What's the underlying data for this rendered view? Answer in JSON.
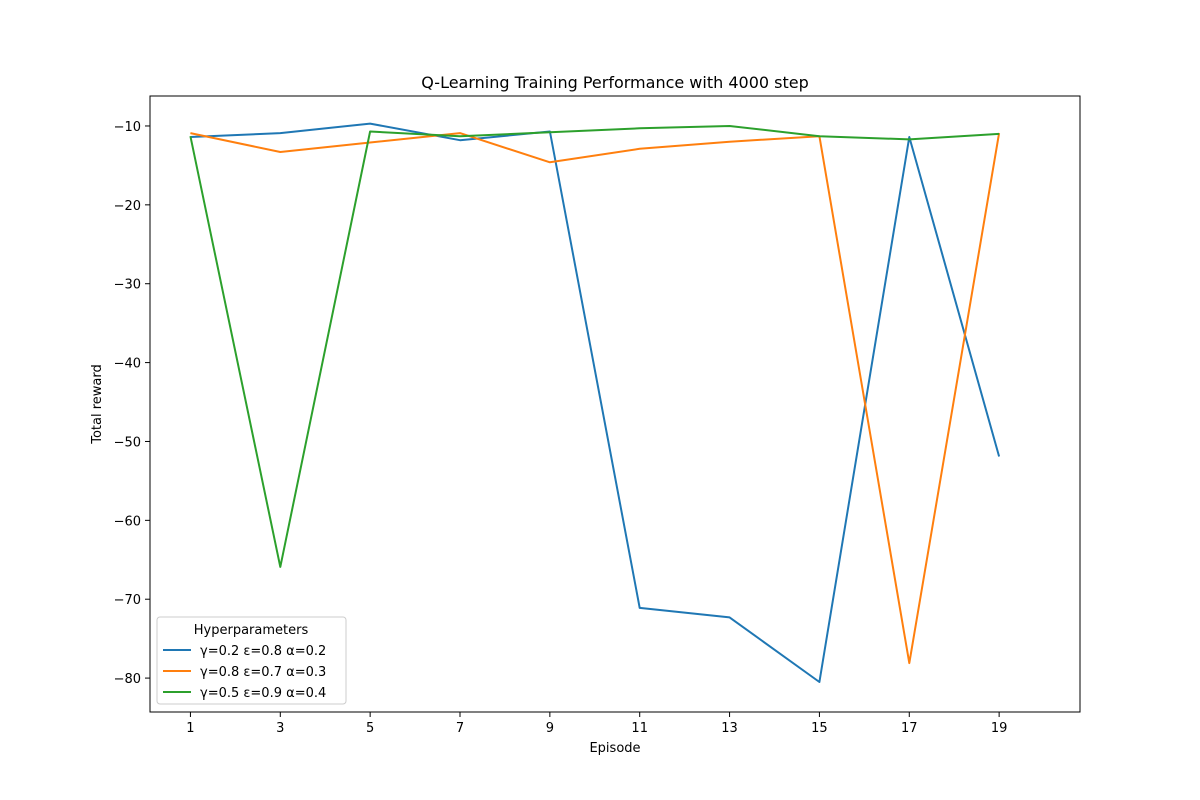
{
  "chart_data": {
    "type": "line",
    "title": "Q-Learning Training Performance with 4000 step",
    "xlabel": "Episode",
    "ylabel": "Total reward",
    "x": [
      1,
      3,
      5,
      7,
      9,
      11,
      13,
      15,
      17,
      19
    ],
    "xticks": [
      "1",
      "3",
      "5",
      "7",
      "9",
      "11",
      "13",
      "15",
      "17",
      "19"
    ],
    "yticks": [
      -10,
      -20,
      -30,
      -40,
      -50,
      -60,
      -70,
      -80
    ],
    "ytick_labels": [
      "−10",
      "−20",
      "−30",
      "−40",
      "−50",
      "−60",
      "−70",
      "−80"
    ],
    "xlim": [
      0.1,
      20.8
    ],
    "ylim": [
      -84.3,
      -6.2
    ],
    "grid": false,
    "legend": {
      "title": "Hyperparameters",
      "placement": "lower-left"
    },
    "series": [
      {
        "name": "γ=0.2 ε=0.8 α=0.2",
        "color": "#1f77b4",
        "values": [
          -11.4,
          -10.9,
          -9.7,
          -11.8,
          -10.7,
          -71.1,
          -72.3,
          -80.5,
          -11.4,
          -51.9
        ]
      },
      {
        "name": "γ=0.8 ε=0.7 α=0.3",
        "color": "#ff7f0e",
        "values": [
          -10.9,
          -13.3,
          -12.1,
          -10.9,
          -14.6,
          -12.9,
          -12.0,
          -11.3,
          -78.1,
          -10.9
        ]
      },
      {
        "name": "γ=0.5 ε=0.9 α=0.4",
        "color": "#2ca02c",
        "values": [
          -11.3,
          -65.9,
          -10.7,
          -11.3,
          -10.8,
          -10.3,
          -10.0,
          -11.3,
          -11.7,
          -11.0
        ]
      }
    ]
  }
}
